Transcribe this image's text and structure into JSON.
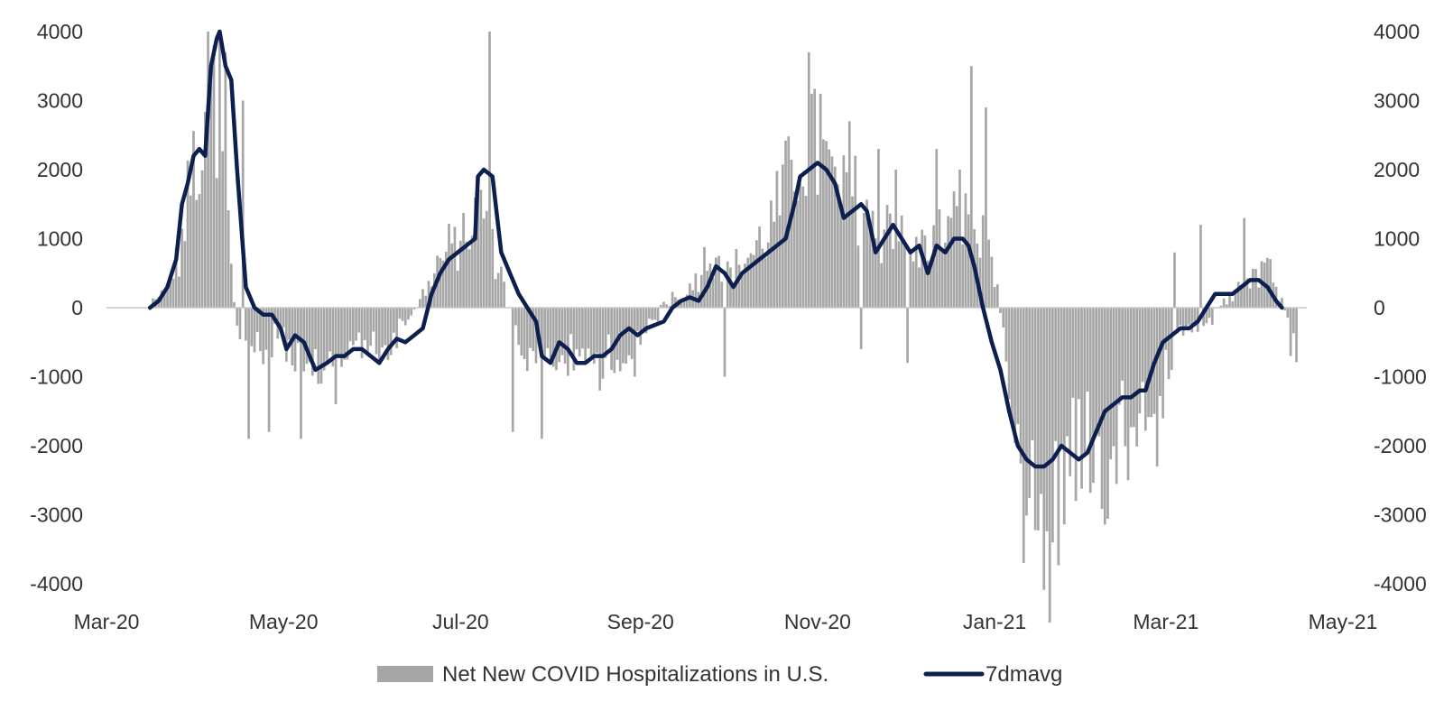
{
  "chart_data": {
    "type": "bar",
    "title": "",
    "xlabel": "",
    "ylabel": "",
    "ylim": [
      -4000,
      4000
    ],
    "y_ticks": [
      "4000",
      "3000",
      "2000",
      "1000",
      "0",
      "-1000",
      "-2000",
      "-3000",
      "-4000"
    ],
    "y_ticks_right": [
      "4000",
      "3000",
      "2000",
      "1000",
      "0",
      "-1000",
      "-2000",
      "-3000",
      "-4000"
    ],
    "x_ticks": [
      "Mar-20",
      "May-20",
      "Jul-20",
      "Sep-20",
      "Nov-20",
      "Jan-21",
      "Mar-21",
      "May-21"
    ],
    "x_tick_days": [
      0,
      61,
      122,
      184,
      245,
      306,
      365,
      426
    ],
    "grid": false,
    "legend_position": "bottom",
    "series": [
      {
        "name": "Net New COVID Hospitalizations in U.S.",
        "kind": "bar",
        "color": "#a6a6a6",
        "start_day": 15,
        "end_day": 410,
        "anchors": [
          [
            15,
            0
          ],
          [
            20,
            200
          ],
          [
            25,
            700
          ],
          [
            28,
            1500
          ],
          [
            31,
            2300
          ],
          [
            33,
            1400
          ],
          [
            35,
            3300
          ],
          [
            37,
            2000
          ],
          [
            39,
            1300
          ],
          [
            41,
            2600
          ],
          [
            43,
            600
          ],
          [
            45,
            -250
          ],
          [
            50,
            -600
          ],
          [
            55,
            -700
          ],
          [
            60,
            -300
          ],
          [
            65,
            -900
          ],
          [
            70,
            -1100
          ],
          [
            75,
            -900
          ],
          [
            80,
            -700
          ],
          [
            85,
            -600
          ],
          [
            90,
            -500
          ],
          [
            95,
            -800
          ],
          [
            100,
            -400
          ],
          [
            105,
            -200
          ],
          [
            110,
            300
          ],
          [
            115,
            700
          ],
          [
            120,
            900
          ],
          [
            125,
            1100
          ],
          [
            130,
            1500
          ],
          [
            133,
            800
          ],
          [
            137,
            300
          ],
          [
            140,
            -300
          ],
          [
            145,
            -700
          ],
          [
            150,
            -900
          ],
          [
            155,
            -700
          ],
          [
            160,
            -800
          ],
          [
            165,
            -600
          ],
          [
            170,
            -800
          ],
          [
            175,
            -700
          ],
          [
            180,
            -600
          ],
          [
            185,
            -300
          ],
          [
            190,
            -100
          ],
          [
            195,
            200
          ],
          [
            200,
            200
          ],
          [
            205,
            600
          ],
          [
            210,
            900
          ],
          [
            215,
            500
          ],
          [
            220,
            700
          ],
          [
            225,
            900
          ],
          [
            230,
            1300
          ],
          [
            235,
            1800
          ],
          [
            240,
            2500
          ],
          [
            245,
            2200
          ],
          [
            250,
            1800
          ],
          [
            255,
            1500
          ],
          [
            260,
            1700
          ],
          [
            265,
            1000
          ],
          [
            270,
            1400
          ],
          [
            275,
            900
          ],
          [
            280,
            800
          ],
          [
            285,
            1000
          ],
          [
            290,
            1100
          ],
          [
            295,
            1300
          ],
          [
            300,
            1000
          ],
          [
            303,
            900
          ],
          [
            306,
            600
          ],
          [
            310,
            -800
          ],
          [
            315,
            -1700
          ],
          [
            320,
            -2800
          ],
          [
            325,
            -3200
          ],
          [
            330,
            -2500
          ],
          [
            335,
            -1800
          ],
          [
            340,
            -2000
          ],
          [
            345,
            -2300
          ],
          [
            350,
            -1600
          ],
          [
            355,
            -1400
          ],
          [
            360,
            -1200
          ],
          [
            365,
            -1100
          ],
          [
            370,
            -400
          ],
          [
            375,
            -300
          ],
          [
            380,
            -200
          ],
          [
            385,
            100
          ],
          [
            390,
            300
          ],
          [
            395,
            500
          ],
          [
            400,
            600
          ],
          [
            405,
            200
          ],
          [
            410,
            -600
          ]
        ],
        "spikes": [
          [
            35,
            4000
          ],
          [
            37,
            3800
          ],
          [
            39,
            4000
          ],
          [
            41,
            3700
          ],
          [
            47,
            3000
          ],
          [
            49,
            -1900
          ],
          [
            56,
            -1800
          ],
          [
            67,
            -1900
          ],
          [
            79,
            -1400
          ],
          [
            132,
            4000
          ],
          [
            140,
            -1800
          ],
          [
            150,
            -1900
          ],
          [
            170,
            -1200
          ],
          [
            182,
            -1000
          ],
          [
            213,
            -1000
          ],
          [
            242,
            3700
          ],
          [
            246,
            3100
          ],
          [
            256,
            2700
          ],
          [
            260,
            -600
          ],
          [
            266,
            2300
          ],
          [
            272,
            2000
          ],
          [
            276,
            -800
          ],
          [
            286,
            2300
          ],
          [
            294,
            2000
          ],
          [
            298,
            3500
          ],
          [
            303,
            2900
          ],
          [
            316,
            -3700
          ],
          [
            326,
            -3400
          ],
          [
            334,
            -2800
          ],
          [
            352,
            -2500
          ],
          [
            362,
            -2300
          ],
          [
            368,
            800
          ],
          [
            377,
            1200
          ],
          [
            392,
            1300
          ],
          [
            408,
            -700
          ]
        ]
      },
      {
        "name": "7dmavg",
        "kind": "line",
        "color": "#0c1f4f",
        "points": [
          [
            15,
            0
          ],
          [
            18,
            100
          ],
          [
            21,
            300
          ],
          [
            24,
            700
          ],
          [
            26,
            1500
          ],
          [
            28,
            1800
          ],
          [
            30,
            2200
          ],
          [
            32,
            2300
          ],
          [
            34,
            2200
          ],
          [
            36,
            3500
          ],
          [
            38,
            3900
          ],
          [
            39,
            4000
          ],
          [
            41,
            3500
          ],
          [
            43,
            3300
          ],
          [
            45,
            2000
          ],
          [
            48,
            300
          ],
          [
            51,
            0
          ],
          [
            54,
            -100
          ],
          [
            57,
            -100
          ],
          [
            60,
            -300
          ],
          [
            62,
            -600
          ],
          [
            65,
            -400
          ],
          [
            68,
            -500
          ],
          [
            72,
            -900
          ],
          [
            76,
            -800
          ],
          [
            79,
            -700
          ],
          [
            82,
            -700
          ],
          [
            85,
            -600
          ],
          [
            88,
            -600
          ],
          [
            91,
            -700
          ],
          [
            94,
            -800
          ],
          [
            97,
            -600
          ],
          [
            100,
            -450
          ],
          [
            103,
            -500
          ],
          [
            106,
            -400
          ],
          [
            109,
            -300
          ],
          [
            112,
            200
          ],
          [
            115,
            500
          ],
          [
            118,
            700
          ],
          [
            121,
            800
          ],
          [
            124,
            900
          ],
          [
            127,
            1000
          ],
          [
            128,
            1900
          ],
          [
            130,
            2000
          ],
          [
            133,
            1900
          ],
          [
            136,
            800
          ],
          [
            139,
            500
          ],
          [
            142,
            200
          ],
          [
            145,
            0
          ],
          [
            148,
            -200
          ],
          [
            150,
            -700
          ],
          [
            153,
            -800
          ],
          [
            156,
            -500
          ],
          [
            159,
            -600
          ],
          [
            162,
            -800
          ],
          [
            165,
            -800
          ],
          [
            168,
            -700
          ],
          [
            171,
            -700
          ],
          [
            174,
            -600
          ],
          [
            177,
            -400
          ],
          [
            180,
            -300
          ],
          [
            183,
            -400
          ],
          [
            186,
            -300
          ],
          [
            189,
            -250
          ],
          [
            192,
            -200
          ],
          [
            195,
            0
          ],
          [
            198,
            100
          ],
          [
            201,
            150
          ],
          [
            204,
            100
          ],
          [
            207,
            300
          ],
          [
            210,
            600
          ],
          [
            213,
            500
          ],
          [
            216,
            300
          ],
          [
            219,
            500
          ],
          [
            222,
            600
          ],
          [
            225,
            700
          ],
          [
            228,
            800
          ],
          [
            231,
            900
          ],
          [
            234,
            1000
          ],
          [
            237,
            1500
          ],
          [
            239,
            1900
          ],
          [
            242,
            2000
          ],
          [
            245,
            2100
          ],
          [
            248,
            2000
          ],
          [
            251,
            1800
          ],
          [
            254,
            1300
          ],
          [
            257,
            1400
          ],
          [
            260,
            1500
          ],
          [
            262,
            1400
          ],
          [
            265,
            800
          ],
          [
            268,
            1000
          ],
          [
            271,
            1200
          ],
          [
            274,
            1000
          ],
          [
            277,
            800
          ],
          [
            280,
            900
          ],
          [
            283,
            500
          ],
          [
            286,
            900
          ],
          [
            289,
            800
          ],
          [
            292,
            1000
          ],
          [
            295,
            1000
          ],
          [
            297,
            900
          ],
          [
            299,
            600
          ],
          [
            302,
            0
          ],
          [
            305,
            -500
          ],
          [
            308,
            -900
          ],
          [
            311,
            -1500
          ],
          [
            314,
            -2000
          ],
          [
            317,
            -2200
          ],
          [
            320,
            -2300
          ],
          [
            323,
            -2300
          ],
          [
            326,
            -2200
          ],
          [
            329,
            -2000
          ],
          [
            332,
            -2100
          ],
          [
            335,
            -2200
          ],
          [
            338,
            -2100
          ],
          [
            341,
            -1800
          ],
          [
            344,
            -1500
          ],
          [
            347,
            -1400
          ],
          [
            350,
            -1300
          ],
          [
            353,
            -1300
          ],
          [
            356,
            -1200
          ],
          [
            358,
            -1200
          ],
          [
            361,
            -800
          ],
          [
            364,
            -500
          ],
          [
            367,
            -400
          ],
          [
            370,
            -300
          ],
          [
            373,
            -300
          ],
          [
            376,
            -200
          ],
          [
            379,
            0
          ],
          [
            382,
            200
          ],
          [
            385,
            200
          ],
          [
            388,
            200
          ],
          [
            391,
            300
          ],
          [
            394,
            400
          ],
          [
            397,
            400
          ],
          [
            400,
            300
          ],
          [
            403,
            100
          ],
          [
            405,
            0
          ]
        ]
      }
    ]
  }
}
